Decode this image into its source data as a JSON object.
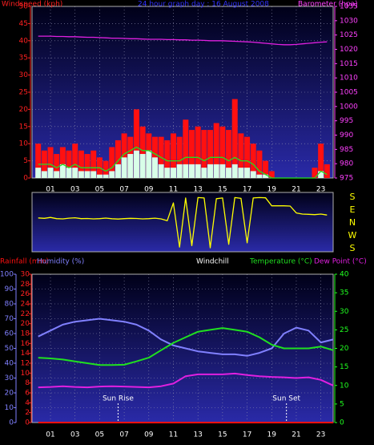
{
  "chart_data": [
    {
      "type": "bar",
      "title": "24 hour graph day : 16 August 2008",
      "y_label": "Windspeed (kph)",
      "y2_label": "Barometer (hpa)",
      "x": [
        0,
        0.5,
        1,
        1.5,
        2,
        2.5,
        3,
        3.5,
        4,
        4.5,
        5,
        5.5,
        6,
        6.5,
        7,
        7.5,
        8,
        8.5,
        9,
        9.5,
        10,
        10.5,
        11,
        11.5,
        12,
        12.5,
        13,
        13.5,
        14,
        14.5,
        15,
        15.5,
        16,
        16.5,
        17,
        17.5,
        18,
        18.5,
        19,
        19.5,
        20,
        20.5,
        21,
        21.5,
        22,
        22.5,
        23,
        23.5
      ],
      "series": [
        {
          "type": "bar",
          "color": "#ff1010",
          "values": [
            10,
            8,
            9,
            7,
            9,
            8,
            10,
            8,
            7,
            8,
            6,
            5,
            9,
            11,
            13,
            12,
            20,
            15,
            13,
            12,
            12,
            11,
            13,
            12,
            17,
            14,
            15,
            14,
            14,
            16,
            15,
            14,
            23,
            13,
            12,
            10,
            8,
            5,
            2,
            0,
            0,
            0,
            0,
            0,
            0,
            3,
            10,
            4
          ]
        },
        {
          "type": "bar",
          "color": "#d8ffe8",
          "values": [
            3,
            2,
            3,
            2,
            4,
            3,
            3,
            2,
            2,
            2,
            1,
            1,
            2,
            4,
            6,
            7,
            8,
            7,
            8,
            6,
            4,
            3,
            3,
            4,
            4,
            4,
            4,
            3,
            4,
            4,
            4,
            3,
            4,
            3,
            3,
            2,
            1,
            1,
            0,
            0,
            0,
            0,
            0,
            0,
            0,
            0,
            2,
            0
          ]
        },
        {
          "type": "line",
          "color": "#20e020",
          "values": [
            4,
            4,
            4,
            3,
            4,
            3,
            4,
            3,
            3,
            3,
            3,
            2,
            3,
            5,
            7,
            8,
            9,
            8,
            8,
            7,
            6,
            5,
            5,
            5,
            6,
            6,
            6,
            5,
            6,
            6,
            6,
            5,
            6,
            5,
            5,
            4,
            2,
            1,
            0,
            0,
            0,
            0,
            0,
            0,
            0,
            0,
            2,
            1
          ]
        },
        {
          "type": "line",
          "axis": "y2",
          "color": "#e020e0",
          "values": [
            1024.6,
            1024.6,
            1024.6,
            1024.5,
            1024.5,
            1024.4,
            1024.4,
            1024.3,
            1024.2,
            1024.2,
            1024.1,
            1024,
            1023.9,
            1023.9,
            1023.8,
            1023.7,
            1023.7,
            1023.6,
            1023.5,
            1023.5,
            1023.5,
            1023.4,
            1023.4,
            1023.3,
            1023.3,
            1023.2,
            1023.2,
            1023.1,
            1023,
            1023,
            1023,
            1022.9,
            1022.8,
            1022.7,
            1022.6,
            1022.5,
            1022.3,
            1022.1,
            1021.9,
            1021.7,
            1021.6,
            1021.6,
            1021.7,
            1021.9,
            1022.1,
            1022.3,
            1022.5,
            1022.6
          ]
        }
      ],
      "xlim": [
        -0.5,
        24
      ],
      "xticks": [
        {
          "value": 1,
          "label": "01"
        },
        {
          "value": 3,
          "label": "03"
        },
        {
          "value": 5,
          "label": "05"
        },
        {
          "value": 7,
          "label": "07"
        },
        {
          "value": 9,
          "label": "09"
        },
        {
          "value": 11,
          "label": "11"
        },
        {
          "value": 13,
          "label": "13"
        },
        {
          "value": 15,
          "label": "15"
        },
        {
          "value": 17,
          "label": "17"
        },
        {
          "value": 19,
          "label": "19"
        },
        {
          "value": 21,
          "label": "21"
        },
        {
          "value": 23,
          "label": "23"
        }
      ],
      "ylim": [
        0,
        50
      ],
      "yticks": [
        0,
        5,
        10,
        15,
        20,
        25,
        30,
        35,
        40,
        45,
        50
      ],
      "y2lim": [
        975,
        1035
      ],
      "y2ticks": [
        975,
        980,
        985,
        990,
        995,
        1000,
        1005,
        1010,
        1015,
        1020,
        1025,
        1030,
        1035
      ],
      "grid": true
    },
    {
      "type": "line",
      "x": [
        0,
        0.5,
        1,
        1.5,
        2,
        2.5,
        3,
        3.5,
        4,
        4.5,
        5,
        5.5,
        6,
        6.5,
        7,
        7.5,
        8,
        8.5,
        9,
        9.5,
        10,
        10.5,
        11,
        11.5,
        12,
        12.5,
        13,
        13.5,
        14,
        14.5,
        15,
        15.5,
        16,
        16.5,
        17,
        17.5,
        18,
        18.5,
        19,
        19.5,
        20,
        20.5,
        21,
        21.5,
        22,
        22.5,
        23,
        23.5
      ],
      "series": [
        {
          "color": "#ffff00",
          "values": [
            35,
            32,
            38,
            30,
            28,
            33,
            36,
            30,
            31,
            28,
            30,
            34,
            29,
            27,
            30,
            32,
            31,
            28,
            30,
            33,
            28,
            15,
            140,
            -170,
            175,
            -160,
            178,
            175,
            -175,
            170,
            175,
            -150,
            178,
            172,
            -140,
            175,
            178,
            176,
            120,
            120,
            120,
            118,
            70,
            62,
            60,
            58,
            62,
            55
          ]
        }
      ],
      "xlim": [
        -0.5,
        24
      ],
      "ylim": [
        -180,
        180
      ],
      "yticks": [
        {
          "value": 180,
          "label": "S"
        },
        {
          "value": 90,
          "label": "E"
        },
        {
          "value": 0,
          "label": "N"
        },
        {
          "value": -90,
          "label": "W"
        },
        {
          "value": -180,
          "label": "S"
        }
      ],
      "grid": false
    },
    {
      "type": "line",
      "windchill_label": "Windchill",
      "x": [
        0,
        1,
        2,
        3,
        4,
        5,
        6,
        7,
        8,
        9,
        10,
        11,
        12,
        13,
        14,
        15,
        16,
        17,
        18,
        19,
        20,
        21,
        22,
        23,
        24
      ],
      "series": [
        {
          "name": "Rainfall (mm)",
          "axis": "y3",
          "color": "#ff1010",
          "values": [
            0,
            0,
            0,
            0,
            0,
            0,
            0,
            0,
            0,
            0,
            0,
            0,
            0,
            0,
            0,
            0,
            0,
            0,
            0,
            0,
            0,
            0,
            0,
            0,
            0
          ]
        },
        {
          "name": "Humidity (%)",
          "color": "#8080ff",
          "values": [
            58,
            62,
            66,
            68,
            69,
            70,
            69,
            68,
            66,
            62,
            56,
            52,
            50,
            48,
            47,
            46,
            46,
            45,
            47,
            50,
            60,
            64,
            62,
            54,
            56
          ]
        },
        {
          "name": "Temperature (°C)",
          "axis": "y2",
          "color": "#20e020",
          "values": [
            17.5,
            17.3,
            17,
            16.5,
            16,
            15.5,
            15.5,
            15.6,
            16.5,
            17.5,
            19.5,
            21.5,
            23,
            24.5,
            25,
            25.5,
            25,
            24.5,
            23,
            21,
            20,
            20,
            20,
            20.5,
            19.5
          ]
        },
        {
          "name": "Dew Point (°C)",
          "axis": "y2",
          "color": "#e020e0",
          "values": [
            9.5,
            9.6,
            9.8,
            9.6,
            9.5,
            9.7,
            9.8,
            9.7,
            9.6,
            9.5,
            9.8,
            10.5,
            12.5,
            13,
            13,
            13,
            13.2,
            12.8,
            12.5,
            12.3,
            12.2,
            12,
            12.2,
            11.5,
            10
          ]
        }
      ],
      "xlim": [
        -0.5,
        24
      ],
      "xticks": [
        {
          "value": 1,
          "label": "01"
        },
        {
          "value": 3,
          "label": "03"
        },
        {
          "value": 5,
          "label": "05"
        },
        {
          "value": 7,
          "label": "07"
        },
        {
          "value": 9,
          "label": "09"
        },
        {
          "value": 11,
          "label": "11"
        },
        {
          "value": 13,
          "label": "13"
        },
        {
          "value": 15,
          "label": "15"
        },
        {
          "value": 17,
          "label": "17"
        },
        {
          "value": 19,
          "label": "19"
        },
        {
          "value": 21,
          "label": "21"
        },
        {
          "value": 23,
          "label": "23"
        }
      ],
      "ylim": [
        0,
        100
      ],
      "yticks": [
        0,
        10,
        20,
        30,
        40,
        50,
        60,
        70,
        80,
        90,
        100
      ],
      "y2lim": [
        0,
        40
      ],
      "y2ticks": [
        0,
        5,
        10,
        15,
        20,
        25,
        30,
        35,
        40
      ],
      "y3lim": [
        0,
        30
      ],
      "y3ticks": [
        0,
        2,
        4,
        6,
        8,
        10,
        12,
        14,
        16,
        18,
        20,
        22,
        24,
        26,
        28,
        30
      ],
      "annotations": [
        {
          "text": "Sun Rise",
          "x": 6.5
        },
        {
          "text": "Sun Set",
          "x": 20.2
        }
      ],
      "grid": true
    }
  ]
}
